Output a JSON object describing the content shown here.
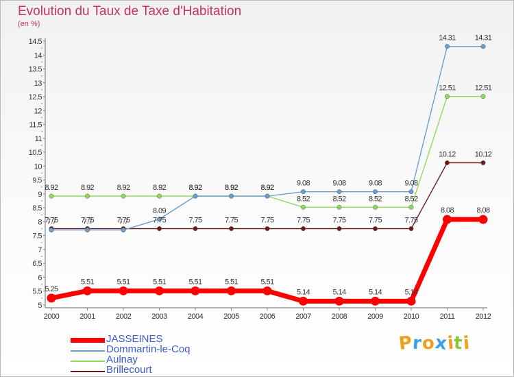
{
  "title": "Evolution du Taux de Taxe d'Habitation",
  "unit": "(en %)",
  "chart_data": {
    "type": "line",
    "x": [
      "2000",
      "2001",
      "2002",
      "2003",
      "2004",
      "2005",
      "2006",
      "2007",
      "2008",
      "2009",
      "2010",
      "2011",
      "2012"
    ],
    "ylim": [
      5,
      14.5
    ],
    "yticks": [
      5,
      5.5,
      6,
      6.5,
      7,
      7.5,
      8,
      8.5,
      9,
      9.5,
      10,
      10.5,
      11,
      11.5,
      12,
      12.5,
      13,
      13.5,
      14,
      14.5
    ],
    "grid": false,
    "legend_position": "bottom-left",
    "series": [
      {
        "name": "JASSEINES",
        "color": "#ff0000",
        "values": [
          5.25,
          5.51,
          5.51,
          5.51,
          5.51,
          5.51,
          5.51,
          5.14,
          5.14,
          5.14,
          5.14,
          8.08,
          8.08
        ]
      },
      {
        "name": "Dommartin-le-Coq",
        "color": "#6a9fcf",
        "values": [
          7.7,
          7.7,
          7.7,
          8.09,
          8.92,
          8.92,
          8.92,
          9.08,
          9.08,
          9.08,
          9.08,
          14.31,
          14.31
        ]
      },
      {
        "name": "Aulnay",
        "color": "#8fdc5a",
        "values": [
          8.92,
          8.92,
          8.92,
          8.92,
          8.92,
          8.92,
          8.92,
          8.52,
          8.52,
          8.52,
          8.52,
          12.51,
          12.51
        ]
      },
      {
        "name": "Brillecourt",
        "color": "#6b1a1a",
        "values": [
          7.75,
          7.75,
          7.75,
          7.75,
          7.75,
          7.75,
          7.75,
          7.75,
          7.75,
          7.75,
          7.75,
          10.12,
          10.12
        ]
      }
    ],
    "data_labels": [
      [
        "5.25",
        "5.51",
        "5.51",
        "5.51",
        "5.51",
        "5.51",
        "5.51",
        "5.14",
        "5.14",
        "5.14",
        "5.14",
        "8.08",
        "8.08"
      ],
      [
        "7.7",
        "7.7",
        "7.7",
        "8.09",
        "8.92",
        "8.92",
        "8.92",
        "9.08",
        "9.08",
        "9.08",
        "9.08",
        "14.31",
        "14.31"
      ],
      [
        "8.92",
        "8.92",
        "8.92",
        "8.92",
        "8.92",
        "8.92",
        "8.92",
        "8.52",
        "8.52",
        "8.52",
        "8.52",
        "12.51",
        "12.51"
      ],
      [
        "7.75",
        "7.75",
        "7.75",
        "7.75",
        "7.75",
        "7.75",
        "7.75",
        "7.75",
        "7.75",
        "7.75",
        "7.75",
        "10.12",
        "10.12"
      ]
    ]
  },
  "legend": [
    {
      "label": "JASSEINES",
      "color": "#ff0000",
      "style": "thick"
    },
    {
      "label": "Dommartin-le-Coq",
      "color": "#6a9fcf",
      "style": "thin"
    },
    {
      "label": "Aulnay",
      "color": "#8fdc5a",
      "style": "thin"
    },
    {
      "label": "Brillecourt",
      "color": "#6b1a1a",
      "style": "thin"
    }
  ],
  "logo": {
    "letters": [
      "P",
      "r",
      "o",
      "x",
      "i",
      "t",
      "i"
    ],
    "colors": [
      "#f0a020",
      "#3aa0e0",
      "#f0a020",
      "#3aa0e0",
      "#f0a020",
      "#8ac43a",
      "#f0a020"
    ]
  }
}
